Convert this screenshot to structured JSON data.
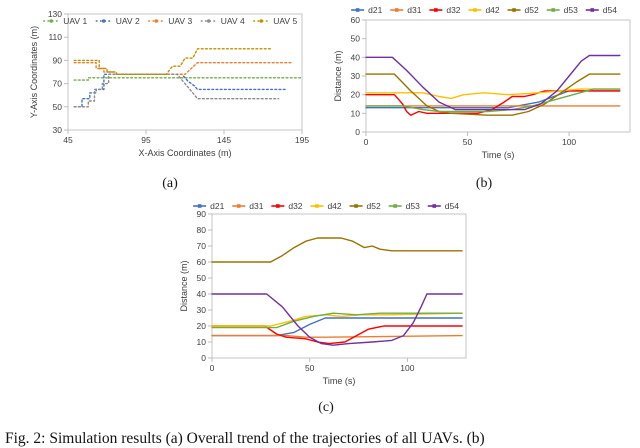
{
  "figure": {
    "sublabel_a": "(a)",
    "sublabel_b": "(b)",
    "sublabel_c": "(c)",
    "caption": "Fig. 2: Simulation results (a) Overall trend of the trajectories of all UAVs. (b)"
  },
  "chart_data": [
    {
      "id": "a",
      "type": "line",
      "title": "",
      "xlabel": "X-Axis Coordinates (m)",
      "ylabel": "Y-Axis Coordinates (m)",
      "xlim": [
        45,
        195
      ],
      "xticks": [
        45,
        95,
        145,
        195
      ],
      "ylim": [
        30,
        130
      ],
      "yticks": [
        30,
        50,
        70,
        90,
        110,
        130
      ],
      "grid": false,
      "legend_position": "top",
      "line_style": "dotted",
      "series": [
        {
          "name": "UAV 1",
          "color": "#70ad47",
          "points": [
            [
              49,
              73
            ],
            [
              58,
              73
            ],
            [
              58,
              75
            ],
            [
              195,
              75
            ]
          ]
        },
        {
          "name": "UAV 2",
          "color": "#4472c4",
          "points": [
            [
              49,
              50
            ],
            [
              54,
              50
            ],
            [
              54,
              57
            ],
            [
              59,
              57
            ],
            [
              59,
              62
            ],
            [
              63,
              62
            ],
            [
              63,
              65
            ],
            [
              68,
              65
            ],
            [
              68,
              78
            ],
            [
              118,
              78
            ],
            [
              122,
              72
            ],
            [
              126,
              68
            ],
            [
              128,
              65
            ],
            [
              185,
              65
            ]
          ]
        },
        {
          "name": "UAV 3",
          "color": "#ed7d31",
          "points": [
            [
              49,
              88
            ],
            [
              63,
              88
            ],
            [
              63,
              83
            ],
            [
              68,
              83
            ],
            [
              68,
              80
            ],
            [
              74,
              80
            ],
            [
              74,
              78
            ],
            [
              120,
              78
            ],
            [
              124,
              83
            ],
            [
              128,
              88
            ],
            [
              188,
              88
            ]
          ]
        },
        {
          "name": "UAV 4",
          "color": "#8c8c8c",
          "points": [
            [
              49,
              50
            ],
            [
              58,
              50
            ],
            [
              58,
              55
            ],
            [
              62,
              55
            ],
            [
              62,
              65
            ],
            [
              67,
              65
            ],
            [
              67,
              70
            ],
            [
              71,
              70
            ],
            [
              71,
              78
            ],
            [
              115,
              78
            ],
            [
              120,
              70
            ],
            [
              125,
              62
            ],
            [
              128,
              57
            ],
            [
              180,
              57
            ]
          ]
        },
        {
          "name": "UAV 5",
          "color": "#bf8f00",
          "points": [
            [
              49,
              90
            ],
            [
              65,
              90
            ],
            [
              65,
              83
            ],
            [
              70,
              83
            ],
            [
              70,
              80
            ],
            [
              76,
              80
            ],
            [
              76,
              78
            ],
            [
              108,
              78
            ],
            [
              112,
              85
            ],
            [
              117,
              85
            ],
            [
              120,
              92
            ],
            [
              125,
              92
            ],
            [
              128,
              100
            ],
            [
              175,
              100
            ]
          ]
        }
      ]
    },
    {
      "id": "b",
      "type": "line",
      "title": "",
      "xlabel": "Time (s)",
      "ylabel": "Distance (m)",
      "xlim": [
        0,
        130
      ],
      "xticks": [
        0,
        50,
        100
      ],
      "ylim": [
        0,
        60
      ],
      "yticks": [
        0,
        10,
        20,
        30,
        40,
        50,
        60
      ],
      "grid": false,
      "legend_position": "top",
      "line_style": "solid",
      "series": [
        {
          "name": "d21",
          "color": "#4472c4",
          "points": [
            [
              0,
              13
            ],
            [
              55,
              13
            ],
            [
              70,
              13
            ],
            [
              85,
              16
            ],
            [
              95,
              20
            ],
            [
              100,
              22
            ],
            [
              125,
              22
            ]
          ]
        },
        {
          "name": "d31",
          "color": "#ed7d31",
          "points": [
            [
              0,
              14
            ],
            [
              125,
              14
            ]
          ]
        },
        {
          "name": "d32",
          "color": "#ff0000",
          "points": [
            [
              0,
              20
            ],
            [
              14,
              20
            ],
            [
              18,
              15
            ],
            [
              20,
              11
            ],
            [
              22,
              9
            ],
            [
              26,
              11
            ],
            [
              30,
              10
            ],
            [
              45,
              10
            ],
            [
              55,
              10
            ],
            [
              62,
              12
            ],
            [
              68,
              16
            ],
            [
              72,
              19
            ],
            [
              78,
              19
            ],
            [
              82,
              20
            ],
            [
              88,
              22
            ],
            [
              125,
              22
            ]
          ]
        },
        {
          "name": "d42",
          "color": "#ffc000",
          "points": [
            [
              0,
              21
            ],
            [
              28,
              21
            ],
            [
              36,
              19
            ],
            [
              42,
              18
            ],
            [
              48,
              20
            ],
            [
              58,
              21
            ],
            [
              70,
              20
            ],
            [
              85,
              21
            ],
            [
              95,
              22
            ],
            [
              105,
              23
            ],
            [
              125,
              23
            ]
          ]
        },
        {
          "name": "d52",
          "color": "#997300",
          "points": [
            [
              0,
              31
            ],
            [
              14,
              31
            ],
            [
              22,
              22
            ],
            [
              30,
              14
            ],
            [
              36,
              11
            ],
            [
              42,
              10
            ],
            [
              60,
              9
            ],
            [
              72,
              9
            ],
            [
              80,
              11
            ],
            [
              88,
              15
            ],
            [
              96,
              21
            ],
            [
              104,
              27
            ],
            [
              110,
              31
            ],
            [
              125,
              31
            ]
          ]
        },
        {
          "name": "d53",
          "color": "#70ad47",
          "points": [
            [
              0,
              14
            ],
            [
              18,
              14
            ],
            [
              28,
              12
            ],
            [
              36,
              11
            ],
            [
              60,
              11
            ],
            [
              72,
              12
            ],
            [
              82,
              14
            ],
            [
              92,
              17
            ],
            [
              102,
              20
            ],
            [
              112,
              23
            ],
            [
              125,
              23
            ]
          ]
        },
        {
          "name": "d54",
          "color": "#7030a0",
          "points": [
            [
              0,
              40
            ],
            [
              13,
              40
            ],
            [
              20,
              33
            ],
            [
              28,
              24
            ],
            [
              36,
              16
            ],
            [
              44,
              12
            ],
            [
              60,
              12
            ],
            [
              78,
              12
            ],
            [
              86,
              15
            ],
            [
              94,
              22
            ],
            [
              100,
              30
            ],
            [
              106,
              38
            ],
            [
              110,
              41
            ],
            [
              125,
              41
            ]
          ]
        }
      ]
    },
    {
      "id": "c",
      "type": "line",
      "title": "",
      "xlabel": "Time (s)",
      "ylabel": "Distance (m)",
      "xlim": [
        0,
        130
      ],
      "xticks": [
        0,
        50,
        100
      ],
      "ylim": [
        0,
        90
      ],
      "yticks": [
        0,
        10,
        20,
        30,
        40,
        50,
        60,
        70,
        80,
        90
      ],
      "grid": false,
      "legend_position": "top",
      "line_style": "solid",
      "series": [
        {
          "name": "d21",
          "color": "#4472c4",
          "points": [
            [
              0,
              14
            ],
            [
              33,
              14
            ],
            [
              42,
              16
            ],
            [
              50,
              21
            ],
            [
              58,
              25
            ],
            [
              70,
              25
            ],
            [
              128,
              25
            ]
          ]
        },
        {
          "name": "d31",
          "color": "#ed7d31",
          "points": [
            [
              0,
              14
            ],
            [
              38,
              14
            ],
            [
              48,
              13
            ],
            [
              58,
              13
            ],
            [
              128,
              14
            ]
          ]
        },
        {
          "name": "d32",
          "color": "#ff0000",
          "points": [
            [
              0,
              20
            ],
            [
              27,
              20
            ],
            [
              33,
              15
            ],
            [
              38,
              13
            ],
            [
              48,
              12
            ],
            [
              54,
              10
            ],
            [
              60,
              9
            ],
            [
              68,
              10
            ],
            [
              74,
              14
            ],
            [
              80,
              18
            ],
            [
              88,
              20
            ],
            [
              128,
              20
            ]
          ]
        },
        {
          "name": "d42",
          "color": "#ffc000",
          "points": [
            [
              0,
              20
            ],
            [
              30,
              20
            ],
            [
              40,
              23
            ],
            [
              48,
              26
            ],
            [
              58,
              27
            ],
            [
              66,
              26
            ],
            [
              76,
              27
            ],
            [
              90,
              27
            ],
            [
              128,
              28
            ]
          ]
        },
        {
          "name": "d52",
          "color": "#997300",
          "points": [
            [
              0,
              60
            ],
            [
              30,
              60
            ],
            [
              36,
              64
            ],
            [
              42,
              69
            ],
            [
              48,
              73
            ],
            [
              54,
              75
            ],
            [
              66,
              75
            ],
            [
              72,
              73
            ],
            [
              78,
              69
            ],
            [
              82,
              70
            ],
            [
              86,
              68
            ],
            [
              92,
              67
            ],
            [
              128,
              67
            ]
          ]
        },
        {
          "name": "d53",
          "color": "#70ad47",
          "points": [
            [
              0,
              19
            ],
            [
              33,
              19
            ],
            [
              42,
              23
            ],
            [
              52,
              26
            ],
            [
              62,
              28
            ],
            [
              74,
              27
            ],
            [
              86,
              28
            ],
            [
              128,
              28
            ]
          ]
        },
        {
          "name": "d54",
          "color": "#7030a0",
          "points": [
            [
              0,
              40
            ],
            [
              28,
              40
            ],
            [
              36,
              32
            ],
            [
              44,
              20
            ],
            [
              50,
              13
            ],
            [
              56,
              9
            ],
            [
              62,
              8
            ],
            [
              70,
              9
            ],
            [
              82,
              10
            ],
            [
              92,
              11
            ],
            [
              98,
              14
            ],
            [
              103,
              22
            ],
            [
              107,
              32
            ],
            [
              110,
              40
            ],
            [
              128,
              40
            ]
          ]
        }
      ]
    }
  ]
}
